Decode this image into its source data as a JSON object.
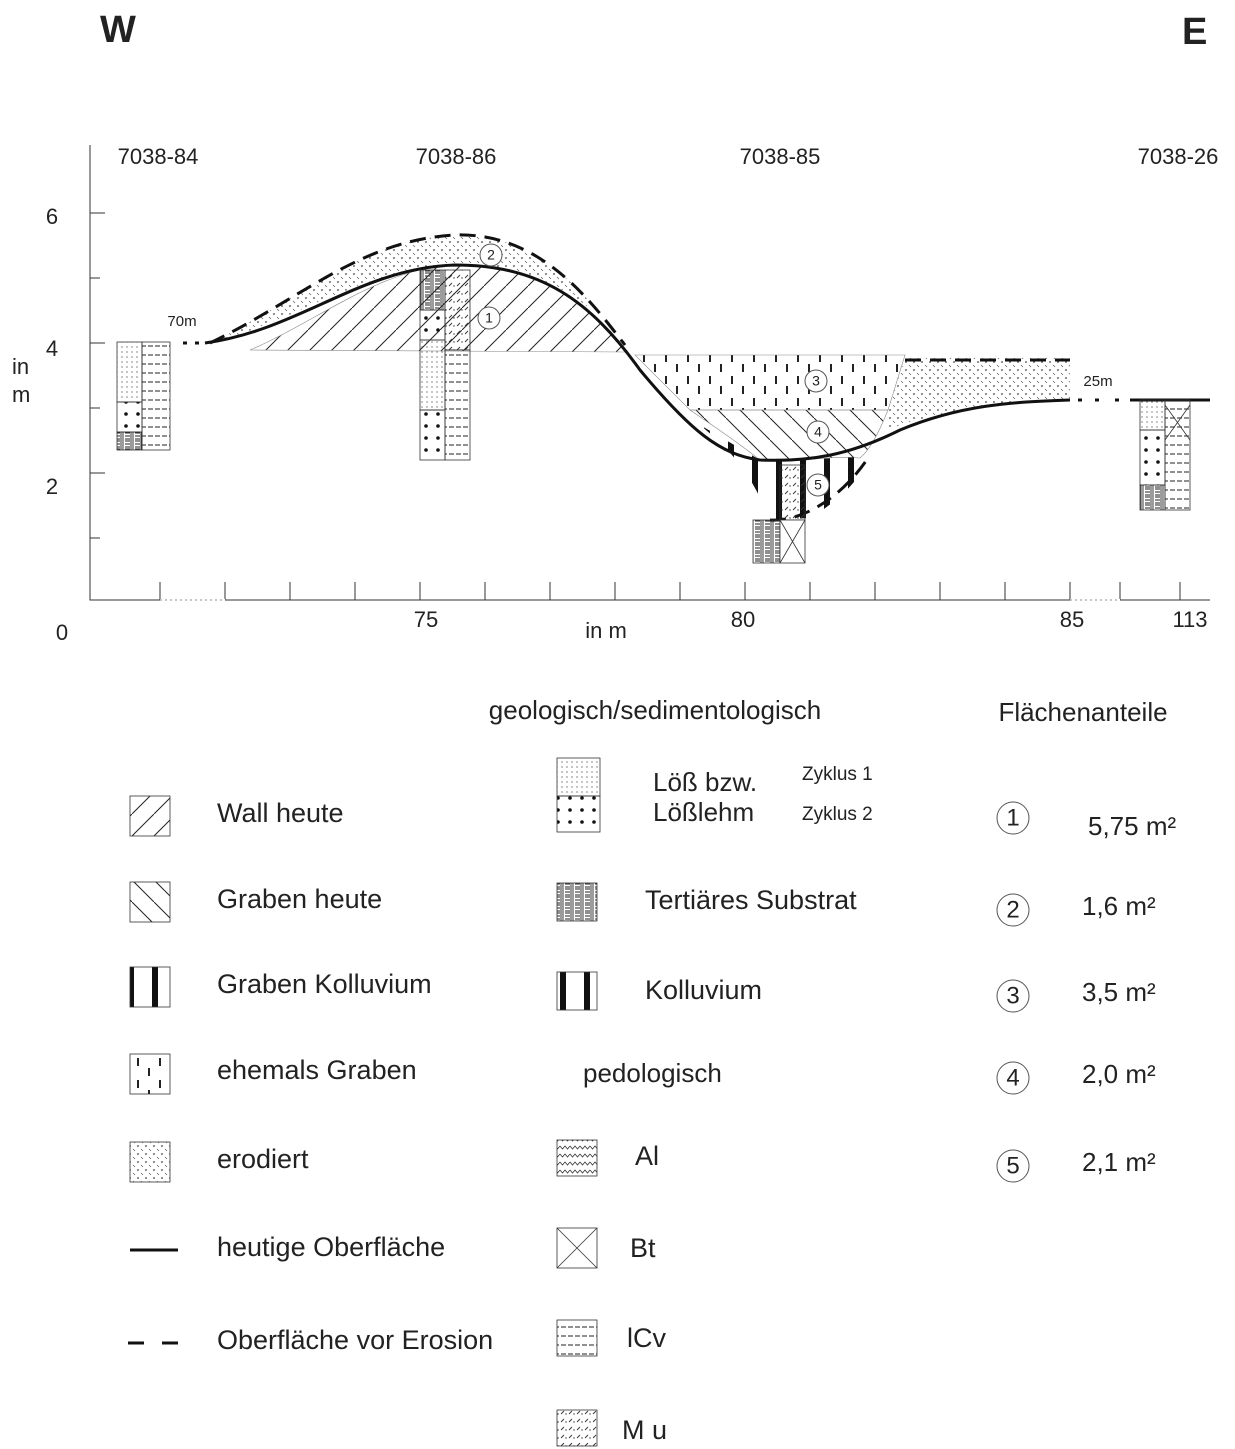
{
  "header": {
    "west": "W",
    "east": "E"
  },
  "profiles": [
    "7038-84",
    "7038-86",
    "7038-85",
    "7038-26"
  ],
  "y_axis": {
    "label": [
      "in",
      "m"
    ],
    "ticks": [
      "6",
      "4",
      "2",
      "0"
    ]
  },
  "x_axis": {
    "label": "in m",
    "ticks": [
      "75",
      "80",
      "85",
      "113"
    ]
  },
  "distances": [
    "70m",
    "25m"
  ],
  "areas": [
    "1",
    "2",
    "3",
    "4",
    "5"
  ],
  "legend": {
    "left": [
      "Wall heute",
      "Graben heute",
      "Graben Kolluvium",
      "ehemals Graben",
      "erodiert",
      "heutige Oberfläche",
      "Oberfläche vor Erosion"
    ],
    "geo_title": "geologisch/sedimentologisch",
    "loess": {
      "label1": "Löß bzw.",
      "label2": "Lößlehm",
      "cycle1": "Zyklus 1",
      "cycle2": "Zyklus 2"
    },
    "geo_items": [
      "Tertiäres Substrat",
      "Kolluvium"
    ],
    "pedo_title": "pedologisch",
    "pedo_items": [
      "Al",
      "Bt",
      "lCv",
      "M u"
    ],
    "area_title": "Flächenanteile",
    "area_items": [
      {
        "id": "1",
        "value": "5,75 m²"
      },
      {
        "id": "2",
        "value": "1,6 m²"
      },
      {
        "id": "3",
        "value": "3,5 m²"
      },
      {
        "id": "4",
        "value": "2,0 m²"
      },
      {
        "id": "5",
        "value": "2,1 m²"
      }
    ]
  }
}
